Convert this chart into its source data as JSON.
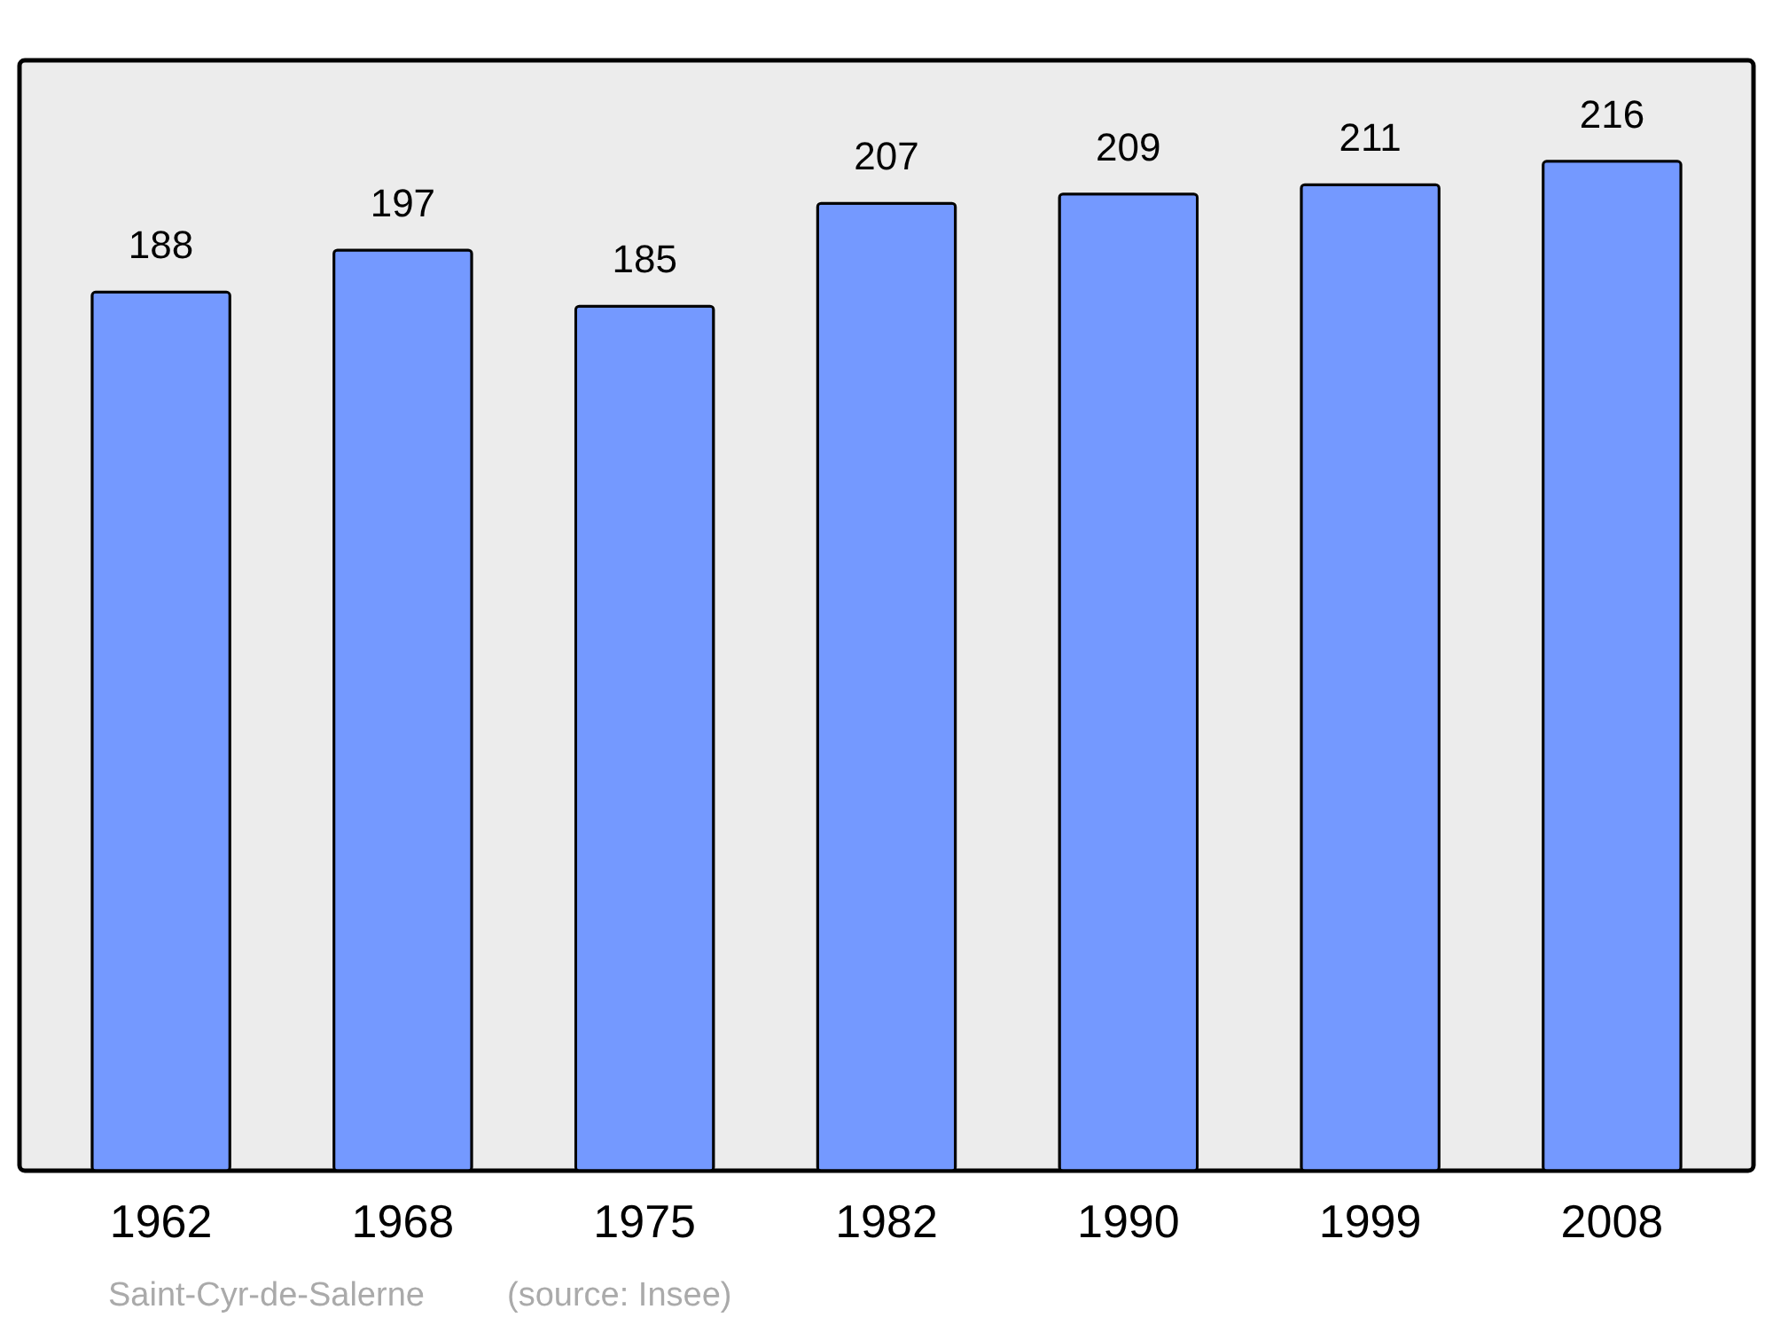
{
  "chart_data": {
    "type": "bar",
    "categories": [
      "1962",
      "1968",
      "1975",
      "1982",
      "1990",
      "1999",
      "2008"
    ],
    "values": [
      188,
      197,
      185,
      207,
      209,
      211,
      216
    ],
    "color": "#7499ff",
    "data_labels": true,
    "grid": false,
    "annotations": [
      "Saint-Cyr-de-Salerne",
      "(source: Insee)"
    ]
  }
}
